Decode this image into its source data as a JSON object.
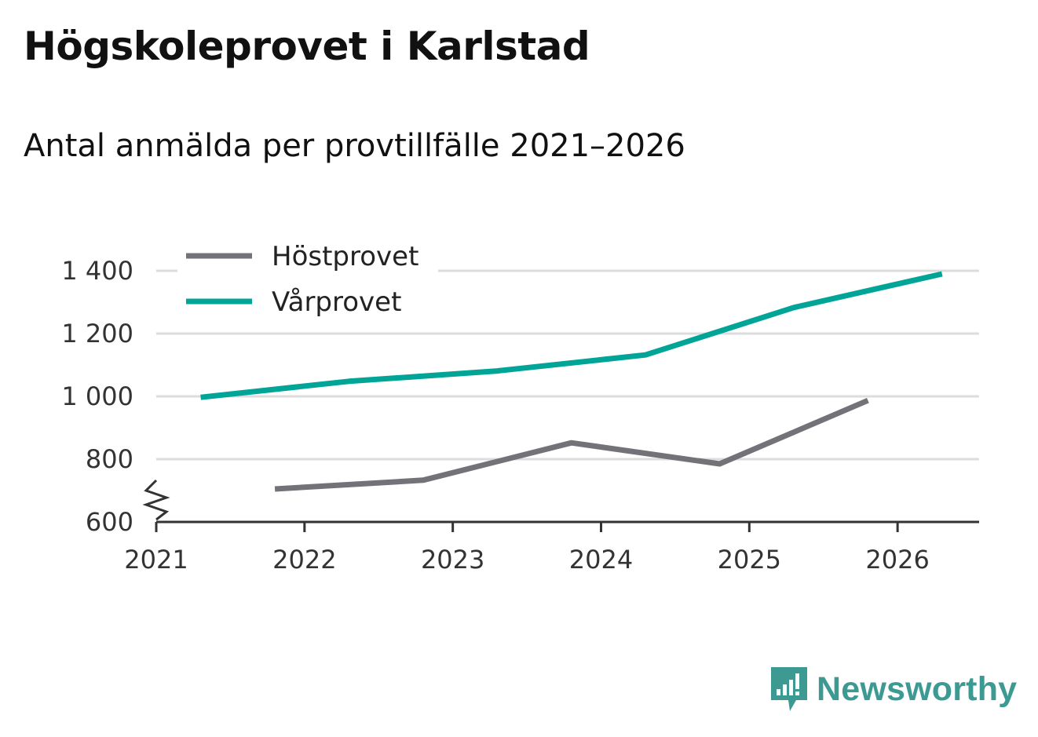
{
  "header": {
    "title": "Högskoleprovet i Karlstad",
    "subtitle": "Antal anmälda per provtillfälle 2021–2026"
  },
  "brand": {
    "name": "Newsworthy",
    "color": "#3d9a93"
  },
  "chart_data": {
    "type": "line",
    "title": "Högskoleprovet i Karlstad",
    "subtitle": "Antal anmälda per provtillfälle 2021–2026",
    "xlabel": "",
    "ylabel": "",
    "xlim": [
      2021,
      2026.55
    ],
    "ylim": [
      600,
      1400
    ],
    "y_axis_break": true,
    "grid": true,
    "legend_position": "top-left",
    "x_ticks": [
      {
        "value": 2021,
        "label": "2021"
      },
      {
        "value": 2022,
        "label": "2022"
      },
      {
        "value": 2023,
        "label": "2023"
      },
      {
        "value": 2024,
        "label": "2024"
      },
      {
        "value": 2025,
        "label": "2025"
      },
      {
        "value": 2026,
        "label": "2026"
      }
    ],
    "y_ticks": [
      {
        "value": 600,
        "label": "600"
      },
      {
        "value": 800,
        "label": "800"
      },
      {
        "value": 1000,
        "label": "1 000"
      },
      {
        "value": 1200,
        "label": "1 200"
      },
      {
        "value": 1400,
        "label": "1 400"
      }
    ],
    "series": [
      {
        "name": "Höstprovet",
        "color": "#737278",
        "points": [
          {
            "x": 2021.8,
            "y": 705
          },
          {
            "x": 2022.8,
            "y": 733
          },
          {
            "x": 2023.8,
            "y": 852
          },
          {
            "x": 2024.8,
            "y": 785
          },
          {
            "x": 2025.8,
            "y": 987
          }
        ]
      },
      {
        "name": "Vårprovet",
        "color": "#00a597",
        "points": [
          {
            "x": 2021.3,
            "y": 997
          },
          {
            "x": 2022.3,
            "y": 1048
          },
          {
            "x": 2023.3,
            "y": 1081
          },
          {
            "x": 2024.3,
            "y": 1132
          },
          {
            "x": 2025.3,
            "y": 1283
          },
          {
            "x": 2026.3,
            "y": 1390
          }
        ]
      }
    ]
  }
}
